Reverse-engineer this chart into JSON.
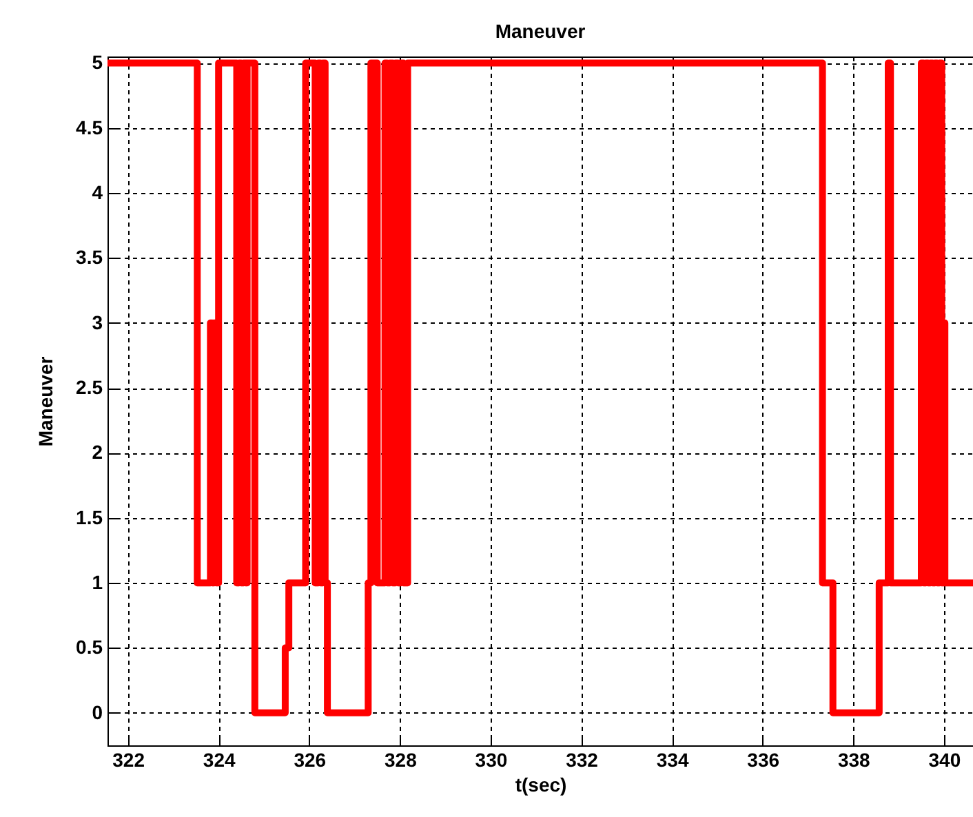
{
  "chart_data": {
    "type": "step",
    "title": "Maneuver",
    "xlabel": "t(sec)",
    "ylabel": "Maneuver",
    "x": [
      321.55,
      323.53,
      323.82,
      323.86,
      323.9,
      323.95,
      324.0,
      324.4,
      324.45,
      324.5,
      324.55,
      324.6,
      324.63,
      324.8,
      325.47,
      325.55,
      325.92,
      326.13,
      326.2,
      326.25,
      326.3,
      326.35,
      326.4,
      327.3,
      327.36,
      327.5,
      327.67,
      327.72,
      327.78,
      327.84,
      327.9,
      327.96,
      328.02,
      328.08,
      328.17,
      337.32,
      337.55,
      338.57,
      338.77,
      338.82,
      339.5,
      339.55,
      339.6,
      339.65,
      339.7,
      339.75,
      339.8,
      339.85,
      339.9,
      339.95,
      340.0,
      340.02,
      340.64
    ],
    "series": [
      {
        "color": "#ff0000",
        "values": [
          5,
          1,
          3,
          1,
          3,
          1,
          5,
          1,
          5,
          1,
          5,
          1,
          5,
          0,
          0.5,
          1,
          5,
          1,
          5,
          1,
          5,
          1,
          0,
          1,
          5,
          1,
          5,
          1,
          5,
          1,
          5,
          1,
          5,
          1,
          5,
          1,
          0,
          1,
          5,
          1,
          5,
          1,
          5,
          1,
          5,
          1,
          5,
          1,
          5,
          1,
          3,
          1,
          1
        ]
      }
    ],
    "xlim": [
      321.55,
      340.64
    ],
    "xticks": [
      322,
      324,
      326,
      328,
      330,
      332,
      334,
      336,
      338,
      340
    ],
    "ylim": [
      -0.25,
      5.05
    ],
    "yticks": [
      0,
      0.5,
      1,
      1.5,
      2,
      2.5,
      3,
      3.5,
      4,
      4.5,
      5
    ],
    "grid": true,
    "line_style": "solid",
    "marker": "none"
  }
}
